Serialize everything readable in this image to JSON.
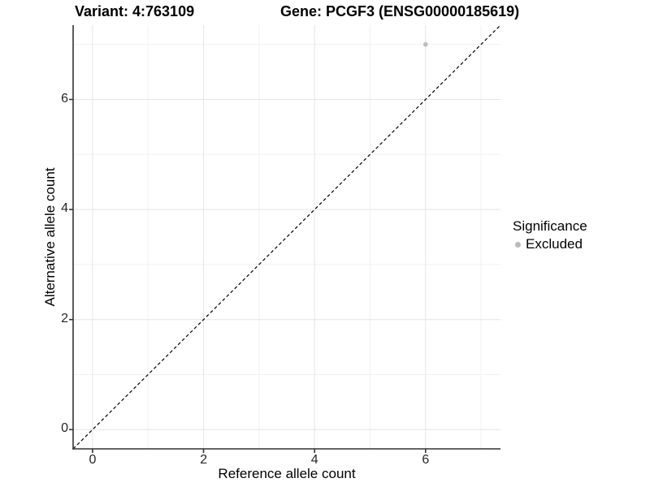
{
  "chart_data": {
    "type": "scatter",
    "titles": {
      "left": "Variant: 4:763109",
      "right": "Gene: PCGF3 (ENSG00000185619)"
    },
    "xlabel": "Reference allele count",
    "ylabel": "Alternative allele count",
    "xlim": [
      -0.35,
      7.35
    ],
    "ylim": [
      -0.35,
      7.35
    ],
    "x_ticks": [
      0,
      2,
      4,
      6
    ],
    "y_ticks": [
      0,
      2,
      4,
      6
    ],
    "x_minor": [
      1,
      3,
      5,
      7
    ],
    "y_minor": [
      1,
      3,
      5,
      7
    ],
    "grid": "major and minor gridlines on, white panel",
    "points": [
      {
        "x": 6,
        "y": 7,
        "series": "Excluded"
      }
    ],
    "reference_line": {
      "type": "identity y=x",
      "style": "dashed",
      "color": "#000000"
    },
    "legend": {
      "title": "Significance",
      "position": "right",
      "entries": [
        {
          "label": "Excluded",
          "color": "#b9b9b9",
          "marker": "circle"
        }
      ]
    },
    "colors": {
      "point": "#bdbdbd",
      "grid_major": "#e5e5e5",
      "grid_minor": "#f1f1f1",
      "axis_line": "#333333",
      "tick_mark": "#333333",
      "dashed_line": "#000000"
    }
  }
}
